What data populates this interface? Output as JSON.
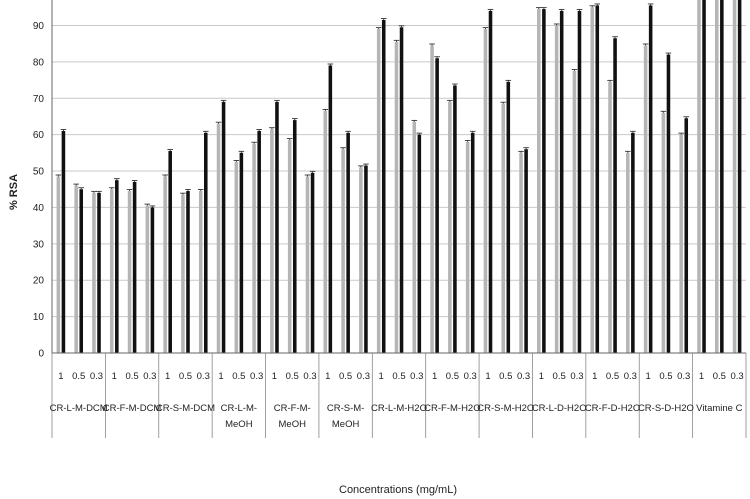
{
  "chart_data": {
    "type": "bar",
    "ylabel": "% RSA",
    "xlabel": "Concentrations (mg/mL)",
    "ylim": [
      0,
      97
    ],
    "yticks": [
      0,
      10,
      20,
      30,
      40,
      50,
      60,
      70,
      80,
      90
    ],
    "grid": true,
    "legend": "none",
    "colors": {
      "first": "#b5b5b5",
      "second": "#111111",
      "axis": "#666666"
    },
    "groups": [
      {
        "label": "CR-L-M-DCM",
        "label_lines": [
          "CR-L-M-DCM"
        ],
        "items": [
          {
            "conc": "1",
            "values": [
              48.5,
              61.0
            ]
          },
          {
            "conc": "0.5",
            "values": [
              46.0,
              45.0
            ]
          },
          {
            "conc": "0.3",
            "values": [
              44.0,
              44.0
            ]
          }
        ]
      },
      {
        "label": "CR-F-M-DCM",
        "label_lines": [
          "CR-F-M-DCM"
        ],
        "items": [
          {
            "conc": "1",
            "values": [
              45.0,
              47.5
            ]
          },
          {
            "conc": "0.5",
            "values": [
              44.5,
              47.0
            ]
          },
          {
            "conc": "0.3",
            "values": [
              40.5,
              40.0
            ]
          }
        ]
      },
      {
        "label": "CR-S-M-DCM",
        "label_lines": [
          "CR-S-M-DCM"
        ],
        "items": [
          {
            "conc": "1",
            "values": [
              48.5,
              55.5
            ]
          },
          {
            "conc": "0.5",
            "values": [
              43.5,
              44.5
            ]
          },
          {
            "conc": "0.3",
            "values": [
              44.5,
              60.5
            ]
          }
        ]
      },
      {
        "label": "CR-L-M-MeOH",
        "label_lines": [
          "CR-L-M-",
          "MeOH"
        ],
        "items": [
          {
            "conc": "1",
            "values": [
              63.0,
              69.0
            ]
          },
          {
            "conc": "0.5",
            "values": [
              52.5,
              55.0
            ]
          },
          {
            "conc": "0.3",
            "values": [
              57.5,
              61.0
            ]
          }
        ]
      },
      {
        "label": "CR-F-M-MeOH",
        "label_lines": [
          "CR-F-M-",
          "MeOH"
        ],
        "items": [
          {
            "conc": "1",
            "values": [
              61.5,
              69.0
            ]
          },
          {
            "conc": "0.5",
            "values": [
              58.5,
              64.0
            ]
          },
          {
            "conc": "0.3",
            "values": [
              48.5,
              49.5
            ]
          }
        ]
      },
      {
        "label": "CR-S-M-MeOH",
        "label_lines": [
          "CR-S-M-",
          "MeOH"
        ],
        "items": [
          {
            "conc": "1",
            "values": [
              66.5,
              79.0
            ]
          },
          {
            "conc": "0.5",
            "values": [
              56.0,
              60.5
            ]
          },
          {
            "conc": "0.3",
            "values": [
              51.0,
              51.5
            ]
          }
        ]
      },
      {
        "label": "CR-L-M-H2O",
        "label_lines": [
          "CR-L-M-H2O"
        ],
        "items": [
          {
            "conc": "1",
            "values": [
              89.0,
              91.5
            ]
          },
          {
            "conc": "0.5",
            "values": [
              85.5,
              89.5
            ]
          },
          {
            "conc": "0.3",
            "values": [
              63.5,
              60.0
            ]
          }
        ]
      },
      {
        "label": "CR-F-M-H2O",
        "label_lines": [
          "CR-F-M-H2O"
        ],
        "items": [
          {
            "conc": "1",
            "values": [
              84.5,
              81.0
            ]
          },
          {
            "conc": "0.5",
            "values": [
              69.0,
              73.5
            ]
          },
          {
            "conc": "0.3",
            "values": [
              58.0,
              60.5
            ]
          }
        ]
      },
      {
        "label": "CR-S-M-H2O",
        "label_lines": [
          "CR-S-M-H2O"
        ],
        "items": [
          {
            "conc": "1",
            "values": [
              89.0,
              94.0
            ]
          },
          {
            "conc": "0.5",
            "values": [
              68.5,
              74.5
            ]
          },
          {
            "conc": "0.3",
            "values": [
              55.0,
              56.0
            ]
          }
        ]
      },
      {
        "label": "CR-L-D-H2O",
        "label_lines": [
          "CR-L-D-H2O"
        ],
        "items": [
          {
            "conc": "1",
            "values": [
              94.5,
              94.5
            ]
          },
          {
            "conc": "0.5",
            "values": [
              90.0,
              94.0
            ]
          },
          {
            "conc": "0.3",
            "values": [
              77.5,
              94.0
            ]
          }
        ]
      },
      {
        "label": "CR-F-D-H2O",
        "label_lines": [
          "CR-F-D-H2O"
        ],
        "items": [
          {
            "conc": "1",
            "values": [
              95.0,
              95.5
            ]
          },
          {
            "conc": "0.5",
            "values": [
              74.5,
              86.5
            ]
          },
          {
            "conc": "0.3",
            "values": [
              55.0,
              60.5
            ]
          }
        ]
      },
      {
        "label": "CR-S-D-H2O",
        "label_lines": [
          "CR-S-D-H2O"
        ],
        "items": [
          {
            "conc": "1",
            "values": [
              84.5,
              95.5
            ]
          },
          {
            "conc": "0.5",
            "values": [
              66.0,
              82.0
            ]
          },
          {
            "conc": "0.3",
            "values": [
              60.0,
              64.5
            ]
          }
        ]
      },
      {
        "label": "Vitamine C",
        "label_lines": [
          "Vitamine C"
        ],
        "items": [
          {
            "conc": "1",
            "values": [
              99.0,
              99.0
            ]
          },
          {
            "conc": "0.5",
            "values": [
              99.0,
              99.0
            ]
          },
          {
            "conc": "0.3",
            "values": [
              99.0,
              99.0
            ]
          }
        ]
      }
    ]
  }
}
